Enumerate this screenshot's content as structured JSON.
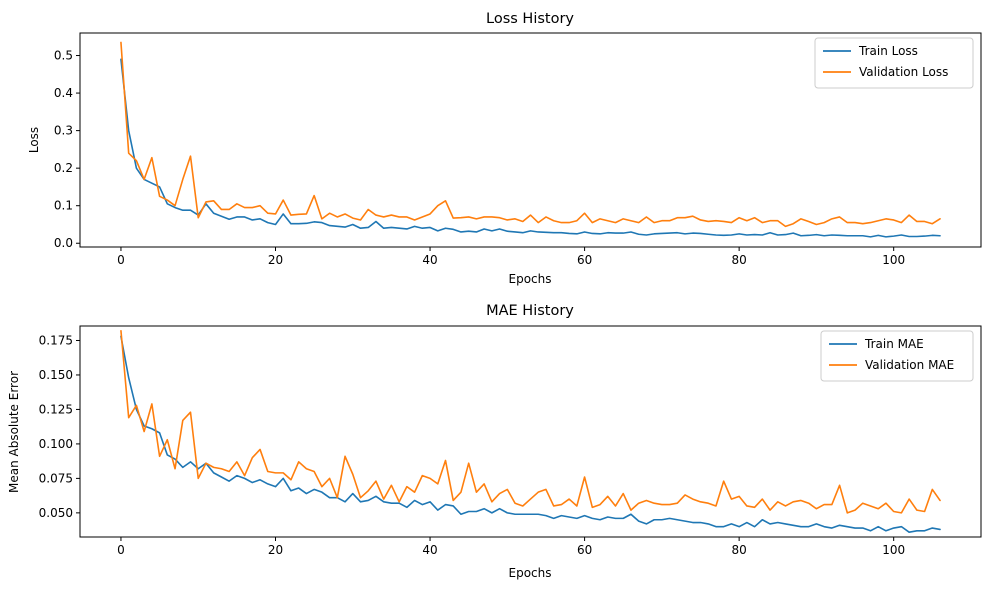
{
  "chart_data": [
    {
      "type": "line",
      "title": "Loss History",
      "xlabel": "Epochs",
      "ylabel": "Loss",
      "xlim": [
        -5.3,
        111.3
      ],
      "ylim": [
        -0.01,
        0.56
      ],
      "xticks": [
        0,
        20,
        40,
        60,
        80,
        100
      ],
      "yticks": [
        0.0,
        0.1,
        0.2,
        0.3,
        0.4,
        0.5
      ],
      "ytick_decimals": 1,
      "legend_position": "upper right",
      "grid": false,
      "series": [
        {
          "name": "Train Loss",
          "color": "#1f77b4",
          "values": [
            0.49,
            0.3,
            0.2,
            0.17,
            0.16,
            0.15,
            0.105,
            0.095,
            0.088,
            0.088,
            0.075,
            0.105,
            0.08,
            0.072,
            0.064,
            0.07,
            0.07,
            0.062,
            0.065,
            0.055,
            0.05,
            0.078,
            0.052,
            0.052,
            0.053,
            0.057,
            0.055,
            0.047,
            0.045,
            0.043,
            0.05,
            0.04,
            0.042,
            0.058,
            0.04,
            0.042,
            0.04,
            0.038,
            0.045,
            0.04,
            0.042,
            0.033,
            0.04,
            0.037,
            0.03,
            0.032,
            0.03,
            0.038,
            0.033,
            0.038,
            0.032,
            0.03,
            0.028,
            0.033,
            0.03,
            0.029,
            0.028,
            0.028,
            0.026,
            0.025,
            0.03,
            0.026,
            0.025,
            0.028,
            0.027,
            0.027,
            0.03,
            0.024,
            0.022,
            0.025,
            0.026,
            0.027,
            0.028,
            0.025,
            0.027,
            0.026,
            0.024,
            0.022,
            0.021,
            0.022,
            0.025,
            0.022,
            0.023,
            0.022,
            0.028,
            0.022,
            0.023,
            0.027,
            0.02,
            0.021,
            0.023,
            0.02,
            0.022,
            0.021,
            0.02,
            0.02,
            0.02,
            0.017,
            0.021,
            0.017,
            0.019,
            0.022,
            0.018,
            0.018,
            0.019,
            0.021,
            0.02
          ]
        },
        {
          "name": "Validation Loss",
          "color": "#ff7f0e",
          "values": [
            0.535,
            0.24,
            0.22,
            0.17,
            0.228,
            0.125,
            0.115,
            0.1,
            0.17,
            0.232,
            0.068,
            0.11,
            0.113,
            0.09,
            0.09,
            0.105,
            0.095,
            0.095,
            0.1,
            0.08,
            0.078,
            0.115,
            0.075,
            0.077,
            0.078,
            0.127,
            0.065,
            0.08,
            0.07,
            0.078,
            0.067,
            0.062,
            0.09,
            0.075,
            0.07,
            0.075,
            0.07,
            0.07,
            0.062,
            0.07,
            0.078,
            0.1,
            0.113,
            0.067,
            0.068,
            0.07,
            0.065,
            0.07,
            0.07,
            0.068,
            0.062,
            0.065,
            0.058,
            0.075,
            0.055,
            0.07,
            0.06,
            0.055,
            0.055,
            0.06,
            0.08,
            0.055,
            0.065,
            0.06,
            0.055,
            0.065,
            0.06,
            0.055,
            0.07,
            0.055,
            0.06,
            0.06,
            0.068,
            0.068,
            0.072,
            0.062,
            0.058,
            0.06,
            0.058,
            0.055,
            0.068,
            0.06,
            0.068,
            0.055,
            0.06,
            0.06,
            0.045,
            0.052,
            0.065,
            0.058,
            0.05,
            0.055,
            0.065,
            0.07,
            0.055,
            0.055,
            0.052,
            0.055,
            0.06,
            0.065,
            0.062,
            0.055,
            0.075,
            0.058,
            0.058,
            0.052,
            0.065
          ]
        }
      ]
    },
    {
      "type": "line",
      "title": "MAE History",
      "xlabel": "Epochs",
      "ylabel": "Mean Absolute Error",
      "xlim": [
        -5.3,
        111.3
      ],
      "ylim": [
        0.0325,
        0.1855
      ],
      "xticks": [
        0,
        20,
        40,
        60,
        80,
        100
      ],
      "yticks": [
        0.05,
        0.075,
        0.1,
        0.125,
        0.15,
        0.175
      ],
      "ytick_decimals": 3,
      "legend_position": "upper right",
      "grid": false,
      "series": [
        {
          "name": "Train MAE",
          "color": "#1f77b4",
          "values": [
            0.178,
            0.148,
            0.125,
            0.113,
            0.111,
            0.108,
            0.092,
            0.089,
            0.083,
            0.087,
            0.082,
            0.086,
            0.079,
            0.076,
            0.073,
            0.077,
            0.075,
            0.072,
            0.074,
            0.071,
            0.069,
            0.075,
            0.066,
            0.068,
            0.064,
            0.067,
            0.065,
            0.061,
            0.061,
            0.058,
            0.064,
            0.058,
            0.059,
            0.062,
            0.058,
            0.057,
            0.057,
            0.054,
            0.059,
            0.056,
            0.058,
            0.052,
            0.056,
            0.055,
            0.049,
            0.051,
            0.051,
            0.053,
            0.05,
            0.053,
            0.05,
            0.049,
            0.049,
            0.049,
            0.049,
            0.048,
            0.046,
            0.048,
            0.047,
            0.046,
            0.048,
            0.046,
            0.045,
            0.047,
            0.046,
            0.046,
            0.049,
            0.044,
            0.042,
            0.045,
            0.045,
            0.046,
            0.045,
            0.044,
            0.043,
            0.043,
            0.042,
            0.04,
            0.04,
            0.042,
            0.04,
            0.043,
            0.04,
            0.045,
            0.042,
            0.043,
            0.042,
            0.041,
            0.04,
            0.04,
            0.042,
            0.04,
            0.039,
            0.041,
            0.04,
            0.039,
            0.039,
            0.037,
            0.04,
            0.037,
            0.039,
            0.04,
            0.036,
            0.037,
            0.037,
            0.039,
            0.038
          ]
        },
        {
          "name": "Validation MAE",
          "color": "#ff7f0e",
          "values": [
            0.182,
            0.119,
            0.128,
            0.109,
            0.129,
            0.091,
            0.103,
            0.082,
            0.117,
            0.123,
            0.075,
            0.086,
            0.083,
            0.082,
            0.08,
            0.087,
            0.077,
            0.09,
            0.096,
            0.08,
            0.079,
            0.079,
            0.074,
            0.087,
            0.082,
            0.08,
            0.069,
            0.075,
            0.061,
            0.091,
            0.078,
            0.061,
            0.066,
            0.073,
            0.06,
            0.07,
            0.058,
            0.069,
            0.065,
            0.077,
            0.075,
            0.071,
            0.088,
            0.059,
            0.065,
            0.086,
            0.065,
            0.071,
            0.058,
            0.064,
            0.067,
            0.057,
            0.055,
            0.06,
            0.065,
            0.067,
            0.055,
            0.056,
            0.06,
            0.055,
            0.076,
            0.054,
            0.056,
            0.062,
            0.055,
            0.064,
            0.052,
            0.057,
            0.059,
            0.057,
            0.056,
            0.056,
            0.057,
            0.063,
            0.06,
            0.058,
            0.057,
            0.055,
            0.073,
            0.06,
            0.062,
            0.055,
            0.054,
            0.06,
            0.052,
            0.058,
            0.055,
            0.058,
            0.059,
            0.057,
            0.053,
            0.056,
            0.056,
            0.07,
            0.05,
            0.052,
            0.057,
            0.055,
            0.053,
            0.057,
            0.051,
            0.05,
            0.06,
            0.052,
            0.051,
            0.067,
            0.059
          ]
        }
      ]
    }
  ]
}
